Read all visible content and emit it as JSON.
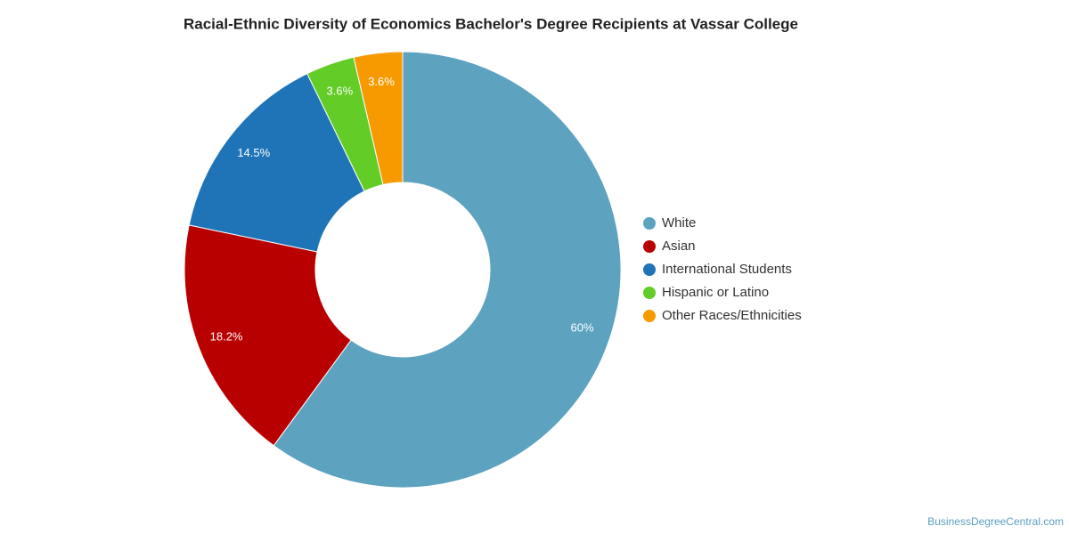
{
  "chart_data": {
    "type": "donut",
    "title": "Racial-Ethnic Diversity of Economics Bachelor's Degree Recipients at Vassar College",
    "categories": [
      "White",
      "Asian",
      "International Students",
      "Hispanic or Latino",
      "Other Races/Ethnicities"
    ],
    "values": [
      60,
      18.2,
      14.5,
      3.6,
      3.6
    ],
    "value_labels": [
      "60%",
      "18.2%",
      "14.5%",
      "3.6%",
      "3.6%"
    ],
    "colors": [
      "#5da2bf",
      "#b90000",
      "#1f74b8",
      "#63cc26",
      "#f79a00"
    ],
    "source": "BusinessDegreeCentral.com"
  }
}
